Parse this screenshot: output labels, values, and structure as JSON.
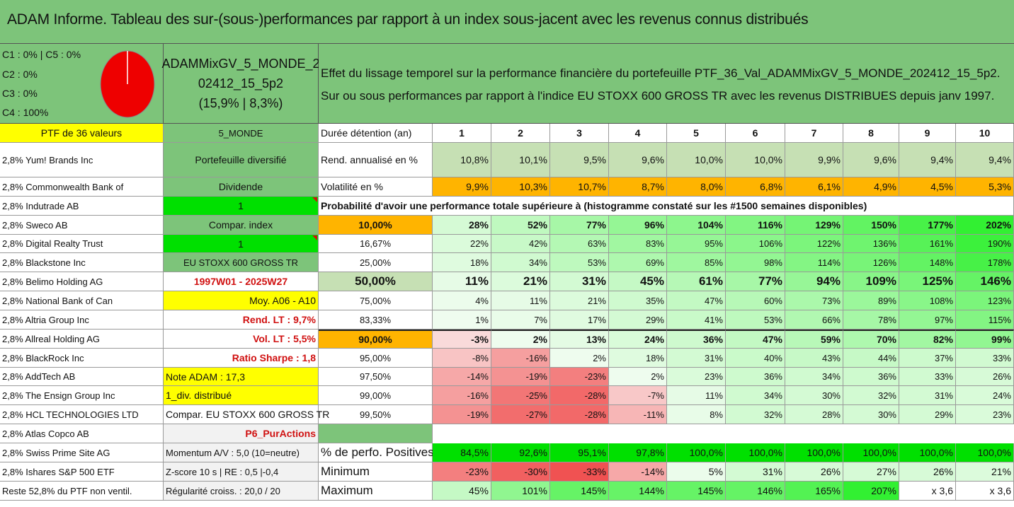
{
  "title": "ADAM Informe. Tableau des sur-(sous-)performances par rapport à un index sous-jacent avec les revenus connus distribués",
  "legend": [
    "C1 : 0% | C5 : 0%",
    "C2 : 0%",
    "C3 : 0%",
    "C4 : 100%"
  ],
  "pie": {
    "color": "#ee0000",
    "slices": [
      {
        "name": "C4",
        "value": 100
      }
    ]
  },
  "portfolio_name": [
    "ADAMMixGV_5_MONDE_2",
    "02412_15_5p2",
    "(15,9% | 8,3%)"
  ],
  "description": [
    "Effet du lissage temporel sur la performance financière du portefeuille PTF_36_Val_ADAMMixGV_5_MONDE_202412_15_5p2.",
    "Sur ou sous performances par rapport à l'indice EU STOXX 600 GROSS TR avec les revenus DISTRIBUES depuis janv 1997."
  ],
  "ptf_header": "PTF de 36 valeurs",
  "holdings": [
    "2,8% Yum! Brands Inc",
    "2,8% Commonwealth Bank of",
    "2,8% Indutrade AB",
    "2,8% Sweco AB",
    "2,8% Digital Realty Trust",
    "2,8% Blackstone Inc",
    "2,8% Belimo Holding AG",
    "2,8% National Bank of Can",
    "2,8% Altria Group Inc",
    "2,8% Allreal Holding AG",
    "2,8% BlackRock Inc",
    "2,8% AddTech AB",
    "2,8% The Ensign Group Inc",
    "2,8% HCL TECHNOLOGIES LTD",
    "2,8% Atlas Copco AB",
    "2,8% Swiss Prime Site AG",
    "2,8% Ishares S&P 500 ETF",
    "Reste 52,8% du PTF non ventil."
  ],
  "info": [
    "5_MONDE",
    "Portefeuille diversifié",
    "Dividende",
    "1",
    "Compar. index",
    "1",
    "EU STOXX 600 GROSS TR",
    "1997W01 - 2025W27",
    "Moy. A06 - A10",
    "Rend. LT : 9,7%",
    "Vol. LT : 5,5%",
    "Ratio Sharpe : 1,8",
    "Note ADAM : 17,3",
    "1_div. distribué",
    "Compar. EU STOXX 600 GROSS TR",
    "P6_PurActions",
    "Momentum A/V : 5,0 (10=neutre)",
    "Z-score 10 s | RE : 0,5 |-0,4",
    "Régularité croiss. : 20,0 / 20"
  ],
  "header": {
    "label": "Durée détention (an)",
    "years": [
      "1",
      "2",
      "3",
      "4",
      "5",
      "6",
      "7",
      "8",
      "9",
      "10"
    ]
  },
  "rend": {
    "label": "Rend. annualisé en %",
    "values": [
      "10,8%",
      "10,1%",
      "9,5%",
      "9,6%",
      "10,0%",
      "10,0%",
      "9,9%",
      "9,6%",
      "9,4%",
      "9,4%"
    ]
  },
  "vol": {
    "label": "Volatilité en %",
    "values": [
      "9,9%",
      "10,3%",
      "10,7%",
      "8,7%",
      "8,0%",
      "6,8%",
      "6,1%",
      "4,9%",
      "4,5%",
      "5,3%"
    ]
  },
  "proba_title": "Probabilité d'avoir une performance totale supérieure à (histogramme constaté sur les #1500 semaines disponibles)",
  "proba_rows": [
    {
      "p": "10,00%",
      "v": [
        "28%",
        "52%",
        "77%",
        "96%",
        "104%",
        "116%",
        "129%",
        "150%",
        "177%",
        "202%"
      ]
    },
    {
      "p": "16,67%",
      "v": [
        "22%",
        "42%",
        "63%",
        "83%",
        "95%",
        "106%",
        "122%",
        "136%",
        "161%",
        "190%"
      ]
    },
    {
      "p": "25,00%",
      "v": [
        "18%",
        "34%",
        "53%",
        "69%",
        "85%",
        "98%",
        "114%",
        "126%",
        "148%",
        "178%"
      ]
    },
    {
      "p": "50,00%",
      "v": [
        "11%",
        "21%",
        "31%",
        "45%",
        "61%",
        "77%",
        "94%",
        "109%",
        "125%",
        "146%"
      ]
    },
    {
      "p": "75,00%",
      "v": [
        "4%",
        "11%",
        "21%",
        "35%",
        "47%",
        "60%",
        "73%",
        "89%",
        "108%",
        "123%"
      ]
    },
    {
      "p": "83,33%",
      "v": [
        "1%",
        "7%",
        "17%",
        "29%",
        "41%",
        "53%",
        "66%",
        "78%",
        "97%",
        "115%"
      ]
    },
    {
      "p": "90,00%",
      "v": [
        "-3%",
        "2%",
        "13%",
        "24%",
        "36%",
        "47%",
        "59%",
        "70%",
        "82%",
        "99%"
      ]
    },
    {
      "p": "95,00%",
      "v": [
        "-8%",
        "-16%",
        "2%",
        "18%",
        "31%",
        "40%",
        "43%",
        "44%",
        "37%",
        "33%"
      ]
    },
    {
      "p": "97,50%",
      "v": [
        "-14%",
        "-19%",
        "-23%",
        "2%",
        "23%",
        "36%",
        "34%",
        "36%",
        "33%",
        "26%"
      ]
    },
    {
      "p": "99,00%",
      "v": [
        "-16%",
        "-25%",
        "-28%",
        "-7%",
        "11%",
        "34%",
        "30%",
        "32%",
        "31%",
        "24%"
      ]
    },
    {
      "p": "99,50%",
      "v": [
        "-19%",
        "-27%",
        "-28%",
        "-11%",
        "8%",
        "32%",
        "28%",
        "30%",
        "29%",
        "23%"
      ]
    }
  ],
  "positives": {
    "label": "% de perfo. Positives",
    "values": [
      "84,5%",
      "92,6%",
      "95,1%",
      "97,8%",
      "100,0%",
      "100,0%",
      "100,0%",
      "100,0%",
      "100,0%",
      "100,0%"
    ]
  },
  "minimum": {
    "label": "Minimum",
    "values": [
      "-23%",
      "-30%",
      "-33%",
      "-14%",
      "5%",
      "31%",
      "26%",
      "27%",
      "26%",
      "21%"
    ]
  },
  "maximum": {
    "label": "Maximum",
    "values": [
      "45%",
      "101%",
      "145%",
      "144%",
      "145%",
      "146%",
      "165%",
      "207%",
      "x 3,6",
      "x 3,6"
    ]
  },
  "colors": {
    "green_band": "#7dc47a",
    "yellow": "#ffff00",
    "bright_green": "#00e000",
    "orange": "#ffb400",
    "light_green_header": "#c6e0b4",
    "red_text": "#d01010"
  }
}
